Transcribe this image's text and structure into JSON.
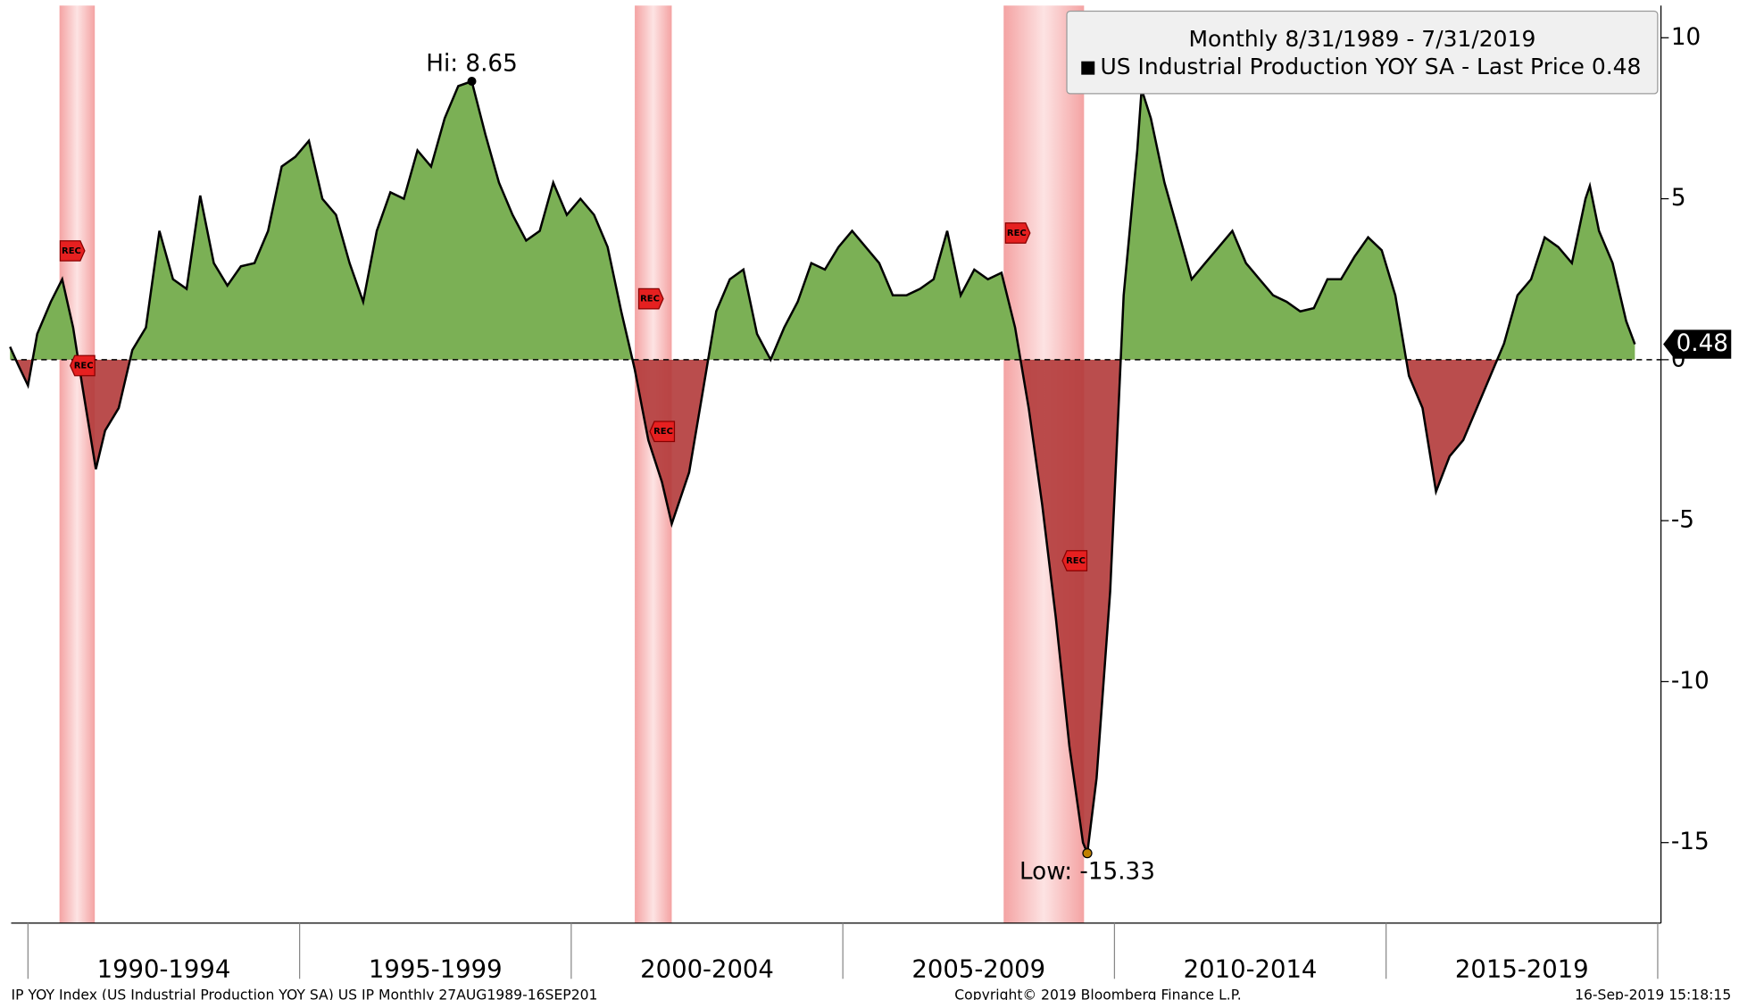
{
  "chart_data": {
    "type": "area",
    "legend_title": "Monthly 8/31/1989 - 7/31/2019",
    "series": [
      {
        "name": "US Industrial Production YOY SA - Last Price 0.48",
        "color": "#000000",
        "positive_color": "#7bb055",
        "negative_color": "#b33a3a",
        "x": [
          1989.67,
          1989.83,
          1990.0,
          1990.17,
          1990.42,
          1990.63,
          1990.83,
          1991.0,
          1991.25,
          1991.42,
          1991.67,
          1991.92,
          1992.17,
          1992.42,
          1992.67,
          1992.92,
          1993.17,
          1993.42,
          1993.67,
          1993.92,
          1994.17,
          1994.42,
          1994.67,
          1994.92,
          1995.17,
          1995.42,
          1995.67,
          1995.92,
          1996.17,
          1996.42,
          1996.67,
          1996.92,
          1997.17,
          1997.42,
          1997.67,
          1997.92,
          1998.17,
          1998.42,
          1998.67,
          1998.92,
          1999.17,
          1999.42,
          1999.67,
          1999.92,
          2000.17,
          2000.42,
          2000.67,
          2000.92,
          2001.17,
          2001.42,
          2001.67,
          2001.85,
          2002.17,
          2002.42,
          2002.67,
          2002.92,
          2003.17,
          2003.42,
          2003.67,
          2003.92,
          2004.17,
          2004.42,
          2004.67,
          2004.92,
          2005.17,
          2005.42,
          2005.67,
          2005.92,
          2006.17,
          2006.42,
          2006.67,
          2006.92,
          2007.17,
          2007.42,
          2007.67,
          2007.92,
          2008.17,
          2008.42,
          2008.67,
          2008.92,
          2009.17,
          2009.42,
          2009.5,
          2009.67,
          2009.92,
          2010.17,
          2010.42,
          2010.5,
          2010.67,
          2010.92,
          2011.17,
          2011.42,
          2011.67,
          2011.92,
          2012.17,
          2012.42,
          2012.67,
          2012.92,
          2013.17,
          2013.42,
          2013.67,
          2013.92,
          2014.17,
          2014.42,
          2014.67,
          2014.92,
          2015.17,
          2015.42,
          2015.67,
          2015.92,
          2016.17,
          2016.42,
          2016.67,
          2016.92,
          2017.17,
          2017.42,
          2017.67,
          2017.92,
          2018.17,
          2018.42,
          2018.67,
          2018.75,
          2018.92,
          2019.17,
          2019.42,
          2019.58
        ],
        "values": [
          0.4,
          -0.2,
          -0.8,
          0.8,
          1.8,
          2.5,
          1.0,
          -0.8,
          -3.4,
          -2.2,
          -1.5,
          0.3,
          1.0,
          4.0,
          2.5,
          2.2,
          5.1,
          3.0,
          2.3,
          2.9,
          3.0,
          4.0,
          6.0,
          6.3,
          6.8,
          5.0,
          4.5,
          3.0,
          1.8,
          4.0,
          5.2,
          5.0,
          6.5,
          6.0,
          7.5,
          8.5,
          8.65,
          7.0,
          5.5,
          4.5,
          3.7,
          4.0,
          5.5,
          4.5,
          5.0,
          4.5,
          3.5,
          1.5,
          -0.3,
          -2.5,
          -3.8,
          -5.1,
          -3.5,
          -1.0,
          1.5,
          2.5,
          2.8,
          0.8,
          0.0,
          1.0,
          1.8,
          3.0,
          2.8,
          3.5,
          4.0,
          3.5,
          3.0,
          2.0,
          2.0,
          2.2,
          2.5,
          4.0,
          2.0,
          2.8,
          2.5,
          2.7,
          1.0,
          -1.5,
          -4.5,
          -8.0,
          -12.0,
          -15.0,
          -15.33,
          -13.0,
          -7.2,
          2.0,
          6.5,
          8.4,
          7.5,
          5.5,
          4.0,
          2.5,
          3.0,
          3.5,
          4.0,
          3.0,
          2.5,
          2.0,
          1.8,
          1.5,
          1.6,
          2.5,
          2.5,
          3.2,
          3.8,
          3.4,
          2.0,
          -0.5,
          -1.5,
          -4.1,
          -3.0,
          -2.5,
          -1.5,
          -0.5,
          0.5,
          2.0,
          2.5,
          3.8,
          3.5,
          3.0,
          5.0,
          5.4,
          4.0,
          3.0,
          1.2,
          0.48
        ]
      }
    ],
    "xlim": [
      1989.69,
      2020.06
    ],
    "xticks": [
      1990,
      1995,
      2000,
      2005,
      2010,
      2015,
      2020
    ],
    "xlabels": [
      {
        "value": 1992.5,
        "label": "1990-1994"
      },
      {
        "value": 1997.5,
        "label": "1995-1999"
      },
      {
        "value": 2002.5,
        "label": "2000-2004"
      },
      {
        "value": 2007.5,
        "label": "2005-2009"
      },
      {
        "value": 2012.5,
        "label": "2010-2014"
      },
      {
        "value": 2017.5,
        "label": "2015-2019"
      }
    ],
    "ylim": [
      -17.5,
      11
    ],
    "yticks": [
      10,
      5,
      0,
      -5,
      -10,
      -15
    ],
    "yaxis_side": "right",
    "grid": false,
    "recessions": [
      [
        1990.58,
        1991.23
      ],
      [
        2001.17,
        2001.85
      ],
      [
        2007.96,
        2009.44
      ]
    ],
    "rec_label": "REC",
    "high_label": "Hi: 8.65",
    "low_label": "Low: -15.33",
    "footer_left": "IP YOY Index (US Industrial Production YOY SA) US IP  Monthly 27AUG1989-16SEP201",
    "footer_center": "Copyright© 2019 Bloomberg Finance L.P.",
    "footer_right": "16-Sep-2019 15:18:15"
  }
}
